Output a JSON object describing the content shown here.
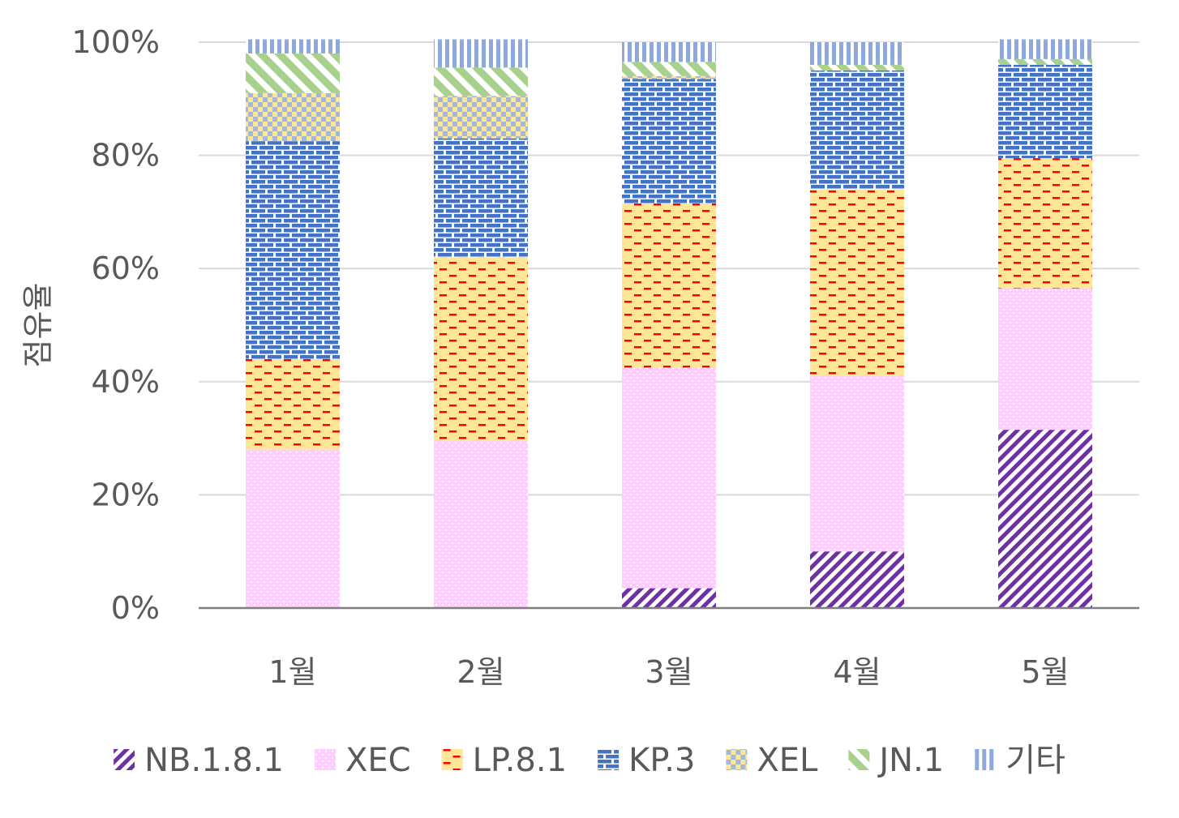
{
  "chart_data": {
    "type": "bar",
    "stacked": true,
    "percent": true,
    "ylabel": "점유율",
    "xlabel": "",
    "ylim": [
      0,
      100
    ],
    "y_ticks": [
      "0%",
      "20%",
      "40%",
      "60%",
      "80%",
      "100%"
    ],
    "categories": [
      "1월",
      "2월",
      "3월",
      "4월",
      "5월"
    ],
    "legend_position": "bottom",
    "grid": true,
    "series": [
      {
        "name": "NB.1.8.1",
        "values": [
          0,
          0,
          3.5,
          10,
          31.5
        ],
        "color": "#7030A0",
        "pattern": "diagonal-stripes"
      },
      {
        "name": "XEC",
        "values": [
          28,
          29.5,
          39,
          31,
          25
        ],
        "color": "#FFCCFF",
        "pattern": "dots"
      },
      {
        "name": "LP.8.1",
        "values": [
          16,
          32.5,
          29,
          33,
          23
        ],
        "color": "#FFE699",
        "pattern": "red-dashes"
      },
      {
        "name": "KP.3",
        "values": [
          38.5,
          21,
          22,
          21,
          16.5
        ],
        "color": "#4472C4",
        "pattern": "bricks"
      },
      {
        "name": "XEL",
        "values": [
          8.5,
          7.5,
          0.5,
          0,
          0
        ],
        "color": "#A4B8D8",
        "pattern": "checker"
      },
      {
        "name": "JN.1",
        "values": [
          7,
          5,
          2.5,
          1,
          1
        ],
        "color": "#A9D18E",
        "pattern": "wide-diagonal"
      },
      {
        "name": "기타",
        "values": [
          2.5,
          5,
          3.5,
          4,
          3.5
        ],
        "color": "#8EA9DB",
        "pattern": "vertical-stripes"
      }
    ]
  }
}
